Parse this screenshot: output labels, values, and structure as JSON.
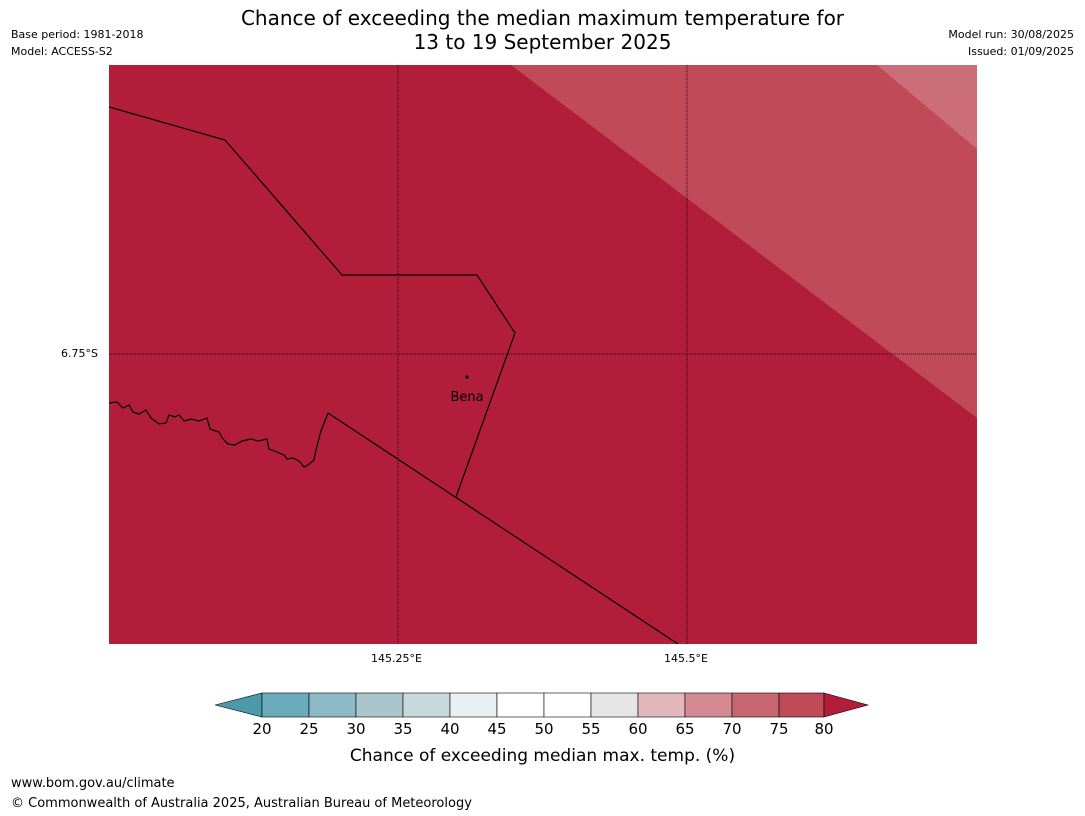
{
  "title": {
    "line1": "Chance of exceeding the median maximum temperature for",
    "line2": "13 to 19 September 2025"
  },
  "meta": {
    "base_period": "Base period: 1981-2018",
    "model": "Model: ACCESS-S2",
    "model_run": "Model run: 30/08/2025",
    "issued": "Issued: 01/09/2025"
  },
  "map": {
    "lat_ticks": [
      "6.75°S"
    ],
    "lon_ticks": [
      "145.25°E",
      "145.5°E"
    ],
    "place": "Bena",
    "colors": {
      "band_80_plus": "#b21e3a",
      "band_75_80": "#c04a58",
      "band_70_75": "#cb6e77"
    }
  },
  "colorbar": {
    "labels": [
      "20",
      "25",
      "30",
      "35",
      "40",
      "45",
      "50",
      "55",
      "60",
      "65",
      "70",
      "75",
      "80"
    ],
    "colors": [
      "#4a9aab",
      "#6aabbc",
      "#8db8c5",
      "#aac6cc",
      "#c8d9dc",
      "#e8f0f1",
      "#ffffff",
      "#ffffff",
      "#e6e6e6",
      "#e3b8bd",
      "#d58a93",
      "#c96770",
      "#c04a58",
      "#b21e3a"
    ],
    "title": "Chance of exceeding median max. temp. (%)"
  },
  "footer": {
    "url": "www.bom.gov.au/climate",
    "copyright": "© Commonwealth of Australia 2025, Australian Bureau of Meteorology"
  }
}
